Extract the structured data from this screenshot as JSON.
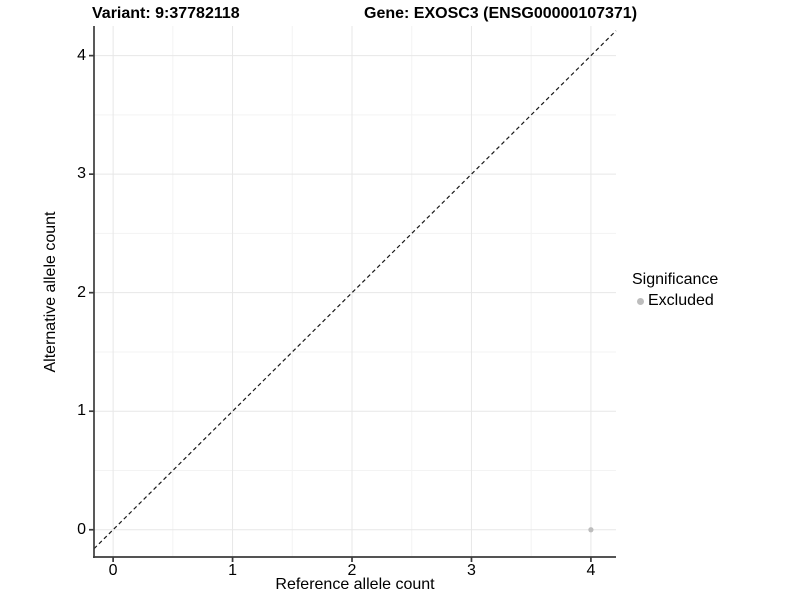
{
  "header": {
    "title_left": "Variant: 9:37782118",
    "title_right": "Gene: EXOSC3 (ENSG00000107371)"
  },
  "chart_data": {
    "type": "scatter",
    "title": "Variant: 9:37782118 / Gene: EXOSC3 (ENSG00000107371)",
    "xlabel": "Reference allele count",
    "ylabel": "Alternative allele count",
    "x_ticks": [
      0,
      1,
      2,
      3,
      4
    ],
    "y_ticks": [
      0,
      1,
      2,
      3,
      4
    ],
    "xlim": [
      -0.16,
      4.21
    ],
    "ylim": [
      -0.23,
      4.25
    ],
    "grid": "major and minor, light gray on white",
    "points": [
      {
        "x": 4,
        "y": 0,
        "series": "Excluded"
      }
    ],
    "reference_line": {
      "kind": "identity y=x",
      "style": "dashed",
      "color": "#1a1a1a"
    },
    "legend": {
      "position": "right",
      "title": "Significance",
      "items": [
        {
          "label": "Excluded",
          "color": "#bdbdbd"
        }
      ]
    },
    "colors": {
      "point_excluded": "#bdbdbd",
      "grid_major": "#e7e7e7",
      "grid_minor": "#f3f3f3",
      "axis_line": "#3c3c3c",
      "text": "#000000",
      "background": "#ffffff"
    }
  }
}
